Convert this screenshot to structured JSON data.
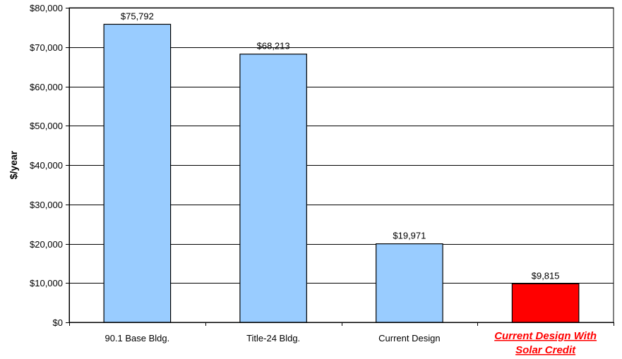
{
  "chart_data": {
    "type": "bar",
    "categories": [
      "90.1 Base Bldg.",
      "Title-24 Bldg.",
      "Current Design",
      "Current Design With Solar Credit"
    ],
    "category_lines": [
      [
        "90.1 Base Bldg."
      ],
      [
        "Title-24 Bldg."
      ],
      [
        "Current Design"
      ],
      [
        "Current Design With",
        "Solar Credit"
      ]
    ],
    "values": [
      75792,
      68213,
      19971,
      9815
    ],
    "data_labels": [
      "$75,792",
      "$68,213",
      "$19,971",
      "$9,815"
    ],
    "bar_colors": [
      "#99ccff",
      "#99ccff",
      "#99ccff",
      "#ff0000"
    ],
    "highlight_category_color": "#ff0000",
    "title": "",
    "xlabel": "",
    "ylabel": "$/year",
    "ylim": [
      0,
      80000
    ],
    "yticks": [
      0,
      10000,
      20000,
      30000,
      40000,
      50000,
      60000,
      70000,
      80000
    ],
    "ytick_labels": [
      "$0",
      "$10,000",
      "$20,000",
      "$30,000",
      "$40,000",
      "$50,000",
      "$60,000",
      "$70,000",
      "$80,000"
    ],
    "grid": true,
    "legend": false
  }
}
